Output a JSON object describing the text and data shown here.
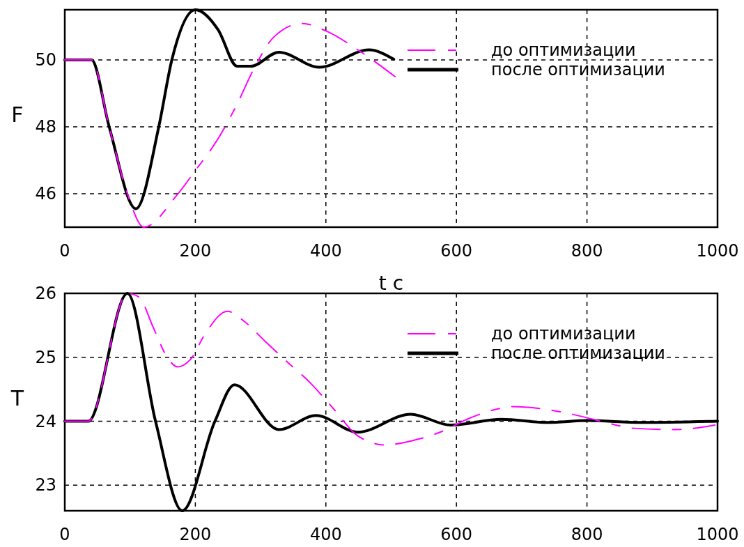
{
  "chart_data": [
    {
      "type": "line",
      "xlabel": "t c",
      "ylabel": "F",
      "xlim": [
        0,
        1000
      ],
      "xticks": [
        0,
        200,
        400,
        600,
        800,
        1000
      ],
      "ylim": [
        45,
        51.5
      ],
      "yticks": [
        46,
        48,
        50
      ],
      "grid": true,
      "legend": "top right",
      "series": [
        {
          "name": "до оптимизации",
          "color": "#ff00ff",
          "line_style": "dashed",
          "x": [
            0,
            41,
            68,
            96,
            121,
            171,
            200,
            235,
            264,
            289,
            320,
            363,
            402,
            449,
            506
          ],
          "values": [
            50,
            50,
            48,
            46,
            45,
            45.94,
            46.69,
            47.65,
            48.68,
            49.71,
            50.68,
            51.09,
            50.85,
            50.3,
            49.5
          ]
        },
        {
          "name": "после оптимизации",
          "color": "#000000",
          "line_style": "solid",
          "x": [
            0,
            41,
            68,
            109,
            144,
            164,
            200,
            235,
            264,
            285,
            328,
            390,
            466,
            504
          ],
          "values": [
            50,
            50,
            48,
            45.55,
            48,
            50,
            51.5,
            50.9,
            49.81,
            49.81,
            50.23,
            49.78,
            50.3,
            50.02
          ]
        }
      ]
    },
    {
      "type": "line",
      "ylabel": "T",
      "xlim": [
        0,
        1000
      ],
      "xticks": [
        0,
        200,
        400,
        600,
        800,
        1000
      ],
      "ylim": [
        22.6,
        26
      ],
      "yticks": [
        23,
        24,
        25,
        26
      ],
      "grid": true,
      "legend": "top right",
      "series": [
        {
          "name": "до оптимизации",
          "color": "#ff00ff",
          "line_style": "dashed",
          "x": [
            0,
            36,
            96,
            114,
            135,
            157,
            173,
            192,
            217,
            249,
            274,
            306,
            335,
            377,
            413,
            449,
            491,
            534,
            580,
            616,
            658,
            687,
            747,
            794,
            829,
            872,
            936,
            996
          ],
          "values": [
            24,
            24,
            26,
            25.94,
            25.48,
            25,
            24.85,
            24.96,
            25.4,
            25.72,
            25.57,
            25.26,
            24.98,
            24.59,
            24.18,
            23.77,
            23.63,
            23.7,
            23.85,
            24.03,
            24.18,
            24.23,
            24.17,
            24.07,
            23.98,
            23.89,
            23.87,
            23.94
          ]
        },
        {
          "name": "после оптимизации",
          "color": "#000000",
          "line_style": "solid",
          "x": [
            0,
            36,
            96,
            139,
            180,
            230,
            260,
            328,
            385,
            449,
            530,
            591,
            669,
            740,
            801,
            883,
            1000
          ],
          "values": [
            24,
            24,
            26,
            24,
            22.6,
            24,
            24.57,
            23.87,
            24.09,
            23.83,
            24.11,
            23.94,
            24.03,
            23.98,
            24.01,
            23.98,
            24
          ]
        }
      ]
    }
  ]
}
